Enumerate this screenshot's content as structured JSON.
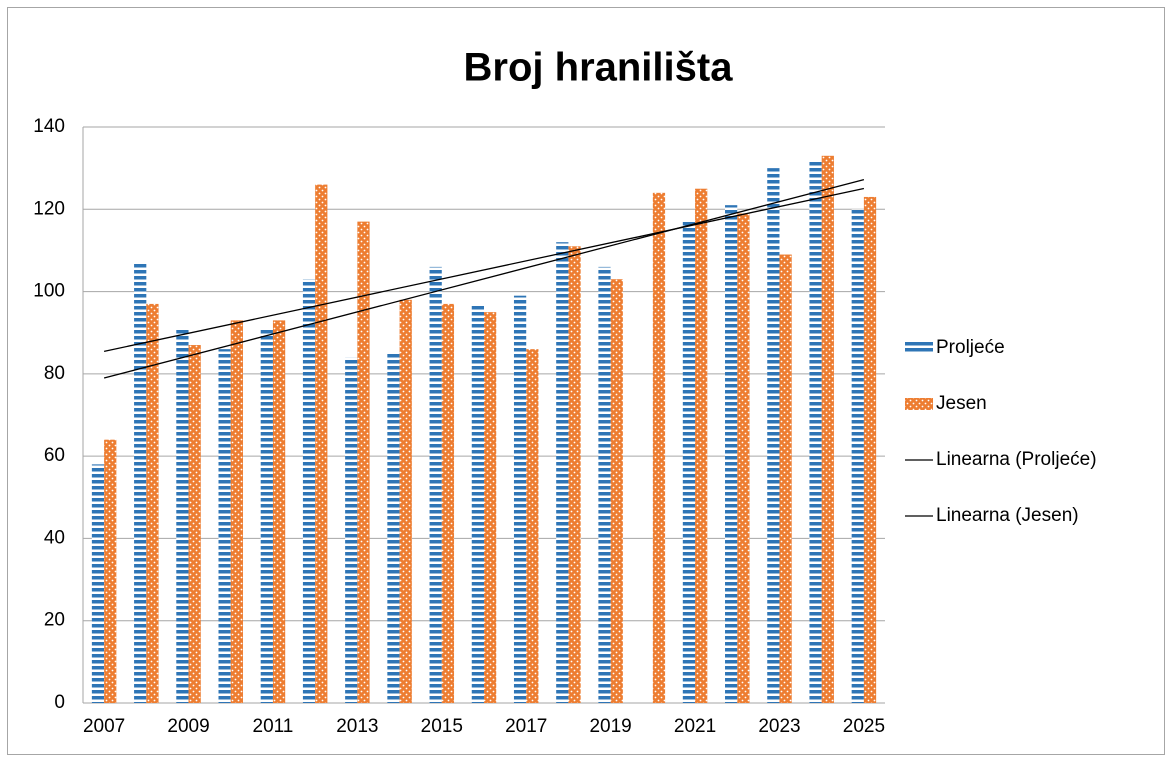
{
  "chart_data": {
    "type": "bar",
    "title": "Broj hranilišta",
    "categories": [
      "2007",
      null,
      "2009",
      null,
      "2011",
      null,
      "2013",
      null,
      "2015",
      null,
      "2017",
      null,
      "2019",
      null,
      "2021",
      null,
      "2023",
      null,
      "2025"
    ],
    "series": [
      {
        "name": "Proljeće",
        "color": "#2e75b6",
        "values": [
          58,
          107,
          91,
          86,
          91,
          103,
          84,
          85,
          106,
          97,
          99,
          112,
          106,
          null,
          117,
          121,
          130,
          132,
          120
        ]
      },
      {
        "name": "Jesen",
        "color": "#ed7d31",
        "values": [
          64,
          97,
          87,
          93,
          93,
          126,
          117,
          98,
          97,
          95,
          86,
          111,
          103,
          124,
          125,
          119,
          109,
          133,
          123
        ]
      }
    ],
    "trendlines": [
      {
        "name": "Linearna (Proljeće)",
        "series": 0,
        "color": "#000000"
      },
      {
        "name": "Linearna (Jesen)",
        "series": 1,
        "color": "#000000"
      }
    ],
    "ylim": [
      0,
      140
    ],
    "yticks": [
      0,
      20,
      40,
      60,
      80,
      100,
      120,
      140
    ],
    "grid": true
  }
}
